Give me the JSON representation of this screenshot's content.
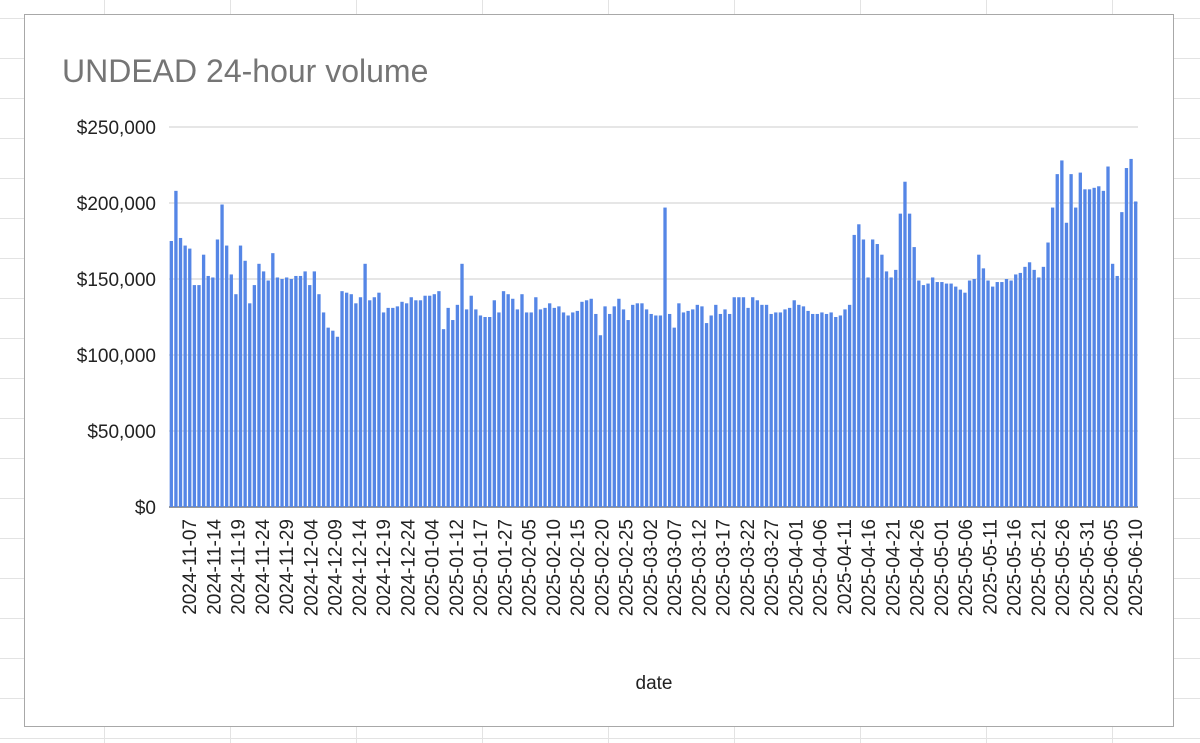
{
  "chart_data": {
    "type": "bar",
    "title": "UNDEAD 24-hour volume",
    "xlabel": "date",
    "ylabel": "",
    "ylim": [
      0,
      250000
    ],
    "y_ticks": [
      0,
      50000,
      100000,
      150000,
      200000,
      250000
    ],
    "y_tick_labels": [
      "$0",
      "$50,000",
      "$100,000",
      "$150,000",
      "$200,000",
      "$250,000"
    ],
    "x_tick_labels": [
      "2024-11-07",
      "2024-11-14",
      "2024-11-19",
      "2024-11-24",
      "2024-11-29",
      "2024-12-04",
      "2024-12-09",
      "2024-12-14",
      "2024-12-19",
      "2024-12-24",
      "2025-01-04",
      "2025-01-12",
      "2025-01-17",
      "2025-01-27",
      "2025-02-05",
      "2025-02-10",
      "2025-02-15",
      "2025-02-20",
      "2025-02-25",
      "2025-03-02",
      "2025-03-07",
      "2025-03-12",
      "2025-03-17",
      "2025-03-22",
      "2025-03-27",
      "2025-04-01",
      "2025-04-06",
      "2025-04-11",
      "2025-04-16",
      "2025-04-21",
      "2025-04-26",
      "2025-05-01",
      "2025-05-06",
      "2025-05-11",
      "2025-05-16",
      "2025-05-21",
      "2025-05-26",
      "2025-05-31",
      "2025-06-05",
      "2025-06-10"
    ],
    "bar_color": "#5586e6",
    "grid": true,
    "legend": "none",
    "values": [
      175000,
      208000,
      177000,
      172000,
      170000,
      146000,
      146000,
      166000,
      152000,
      151000,
      176000,
      199000,
      172000,
      153000,
      140000,
      172000,
      162000,
      134000,
      146000,
      160000,
      155000,
      149000,
      167000,
      151000,
      150000,
      151000,
      150000,
      152000,
      152000,
      155000,
      146000,
      155000,
      140000,
      128000,
      118000,
      116000,
      112000,
      142000,
      141000,
      140000,
      134000,
      138000,
      160000,
      136000,
      138000,
      141000,
      128000,
      131000,
      131000,
      132000,
      135000,
      134000,
      138000,
      136000,
      136000,
      139000,
      139000,
      140000,
      142000,
      117000,
      131000,
      123000,
      133000,
      160000,
      130000,
      139000,
      130000,
      126000,
      125000,
      125000,
      136000,
      128000,
      142000,
      140000,
      137000,
      130000,
      140000,
      128000,
      128000,
      138000,
      130000,
      131000,
      134000,
      131000,
      132000,
      128000,
      126000,
      128000,
      129000,
      135000,
      136000,
      137000,
      127000,
      113000,
      132000,
      127000,
      132000,
      137000,
      130000,
      123000,
      133000,
      134000,
      134000,
      130000,
      127000,
      126000,
      126000,
      197000,
      127000,
      118000,
      134000,
      128000,
      129000,
      130000,
      133000,
      132000,
      121000,
      126000,
      133000,
      127000,
      130000,
      127000,
      138000,
      138000,
      138000,
      131000,
      138000,
      136000,
      133000,
      133000,
      127000,
      128000,
      128000,
      130000,
      131000,
      136000,
      133000,
      132000,
      129000,
      127000,
      127000,
      128000,
      127000,
      128000,
      125000,
      126000,
      130000,
      133000,
      179000,
      186000,
      176000,
      151000,
      176000,
      173000,
      166000,
      155000,
      151000,
      156000,
      193000,
      214000,
      193000,
      171000,
      149000,
      146000,
      147000,
      151000,
      148000,
      148000,
      147000,
      147000,
      145000,
      143000,
      141000,
      149000,
      150000,
      166000,
      157000,
      149000,
      145000,
      148000,
      148000,
      150000,
      149000,
      153000,
      154000,
      158000,
      161000,
      156000,
      151000,
      158000,
      174000,
      197000,
      219000,
      228000,
      187000,
      219000,
      197000,
      220000,
      209000,
      209000,
      210000,
      211000,
      208000,
      224000,
      160000,
      152000,
      194000,
      223000,
      229000,
      201000
    ]
  }
}
